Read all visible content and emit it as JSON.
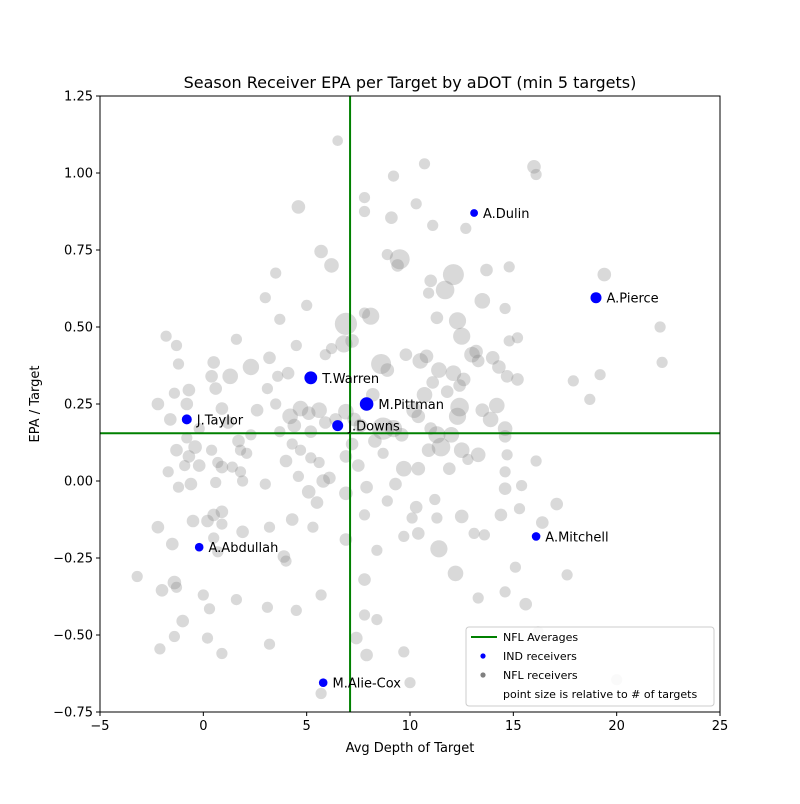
{
  "chart_data": {
    "type": "scatter",
    "title": "Season Receiver EPA per Target by aDOT (min 5 targets)",
    "xlabel": "Avg Depth of Target",
    "ylabel": "EPA / Target",
    "xlim": [
      -5,
      25
    ],
    "ylim": [
      -0.75,
      1.25
    ],
    "xticks": [
      -5,
      0,
      5,
      10,
      15,
      20,
      25
    ],
    "yticks": [
      -0.75,
      -0.5,
      -0.25,
      0.0,
      0.25,
      0.5,
      0.75,
      1.0,
      1.25
    ],
    "xtick_labels": [
      "−5",
      "0",
      "5",
      "10",
      "15",
      "20",
      "25"
    ],
    "ytick_labels": [
      "−0.75",
      "−0.50",
      "−0.25",
      "0.00",
      "0.25",
      "0.50",
      "0.75",
      "1.00",
      "1.25"
    ],
    "grid": false,
    "reference_lines": {
      "x": 7.1,
      "y": 0.155
    },
    "colors": {
      "averages": "#008000",
      "ind": "#0000ff",
      "nfl": "#808080"
    },
    "legend": {
      "position": "lower-right",
      "items": [
        {
          "label": "NFL Averages",
          "marker": "line"
        },
        {
          "label": "IND receivers",
          "marker": "blue-dot"
        },
        {
          "label": "NFL receivers",
          "marker": "gray-dot"
        },
        {
          "label": "point size is relative to # of targets",
          "marker": "none"
        }
      ]
    },
    "ind_receivers": [
      {
        "label": "A.Dulin",
        "x": 13.1,
        "y": 0.87,
        "targets": 8
      },
      {
        "label": "A.Pierce",
        "x": 19.0,
        "y": 0.595,
        "targets": 30
      },
      {
        "label": "T.Warren",
        "x": 5.2,
        "y": 0.335,
        "targets": 50
      },
      {
        "label": "M.Pittman",
        "x": 7.9,
        "y": 0.25,
        "targets": 60
      },
      {
        "label": "J.Taylor",
        "x": -0.8,
        "y": 0.2,
        "targets": 22
      },
      {
        "label": "J.Downs",
        "x": 6.5,
        "y": 0.18,
        "targets": 30
      },
      {
        "label": "A.Abdullah",
        "x": -0.2,
        "y": -0.215,
        "targets": 12
      },
      {
        "label": "A.Mitchell",
        "x": 16.1,
        "y": -0.18,
        "targets": 12
      },
      {
        "label": "M.Alie-Cox",
        "x": 5.8,
        "y": -0.655,
        "targets": 12
      }
    ],
    "nfl_receivers": [
      [
        6.5,
        1.105,
        8
      ],
      [
        9.2,
        0.99,
        10
      ],
      [
        10.7,
        1.03,
        10
      ],
      [
        16.0,
        1.02,
        20
      ],
      [
        16.1,
        0.995,
        10
      ],
      [
        7.8,
        0.92,
        10
      ],
      [
        7.8,
        0.875,
        10
      ],
      [
        9.1,
        0.855,
        15
      ],
      [
        10.3,
        0.9,
        10
      ],
      [
        12.7,
        0.82,
        10
      ],
      [
        11.1,
        0.83,
        10
      ],
      [
        4.6,
        0.89,
        20
      ],
      [
        9.5,
        0.72,
        60
      ],
      [
        12.1,
        0.67,
        70
      ],
      [
        11.7,
        0.62,
        50
      ],
      [
        5.7,
        0.745,
        20
      ],
      [
        6.2,
        0.7,
        25
      ],
      [
        8.9,
        0.735,
        10
      ],
      [
        9.4,
        0.7,
        15
      ],
      [
        13.7,
        0.685,
        15
      ],
      [
        14.8,
        0.695,
        10
      ],
      [
        3.5,
        0.675,
        10
      ],
      [
        19.4,
        0.67,
        20
      ],
      [
        11.0,
        0.65,
        15
      ],
      [
        10.9,
        0.61,
        10
      ],
      [
        13.5,
        0.585,
        30
      ],
      [
        3.0,
        0.595,
        10
      ],
      [
        5.0,
        0.57,
        10
      ],
      [
        7.8,
        0.545,
        10
      ],
      [
        6.9,
        0.51,
        80
      ],
      [
        8.1,
        0.535,
        40
      ],
      [
        11.3,
        0.53,
        15
      ],
      [
        12.3,
        0.52,
        40
      ],
      [
        14.6,
        0.56,
        10
      ],
      [
        22.1,
        0.5,
        10
      ],
      [
        15.2,
        0.465,
        10
      ],
      [
        14.8,
        0.455,
        10
      ],
      [
        3.7,
        0.525,
        10
      ],
      [
        1.6,
        0.46,
        10
      ],
      [
        -1.8,
        0.47,
        10
      ],
      [
        -1.3,
        0.44,
        10
      ],
      [
        7.2,
        0.455,
        20
      ],
      [
        6.8,
        0.445,
        40
      ],
      [
        5.9,
        0.41,
        10
      ],
      [
        4.5,
        0.44,
        10
      ],
      [
        6.2,
        0.43,
        10
      ],
      [
        9.8,
        0.41,
        15
      ],
      [
        10.8,
        0.405,
        20
      ],
      [
        12.5,
        0.47,
        40
      ],
      [
        13.2,
        0.42,
        20
      ],
      [
        13.0,
        0.41,
        30
      ],
      [
        14.0,
        0.4,
        20
      ],
      [
        8.6,
        0.38,
        60
      ],
      [
        8.9,
        0.36,
        20
      ],
      [
        10.5,
        0.39,
        30
      ],
      [
        11.4,
        0.36,
        30
      ],
      [
        12.1,
        0.35,
        30
      ],
      [
        13.3,
        0.39,
        15
      ],
      [
        12.6,
        0.33,
        20
      ],
      [
        10.7,
        0.28,
        30
      ],
      [
        11.1,
        0.32,
        15
      ],
      [
        11.8,
        0.29,
        15
      ],
      [
        12.4,
        0.31,
        15
      ],
      [
        14.3,
        0.37,
        20
      ],
      [
        14.7,
        0.34,
        15
      ],
      [
        15.2,
        0.33,
        15
      ],
      [
        17.9,
        0.325,
        10
      ],
      [
        19.2,
        0.345,
        10
      ],
      [
        22.2,
        0.385,
        10
      ],
      [
        18.7,
        0.265,
        10
      ],
      [
        2.3,
        0.37,
        35
      ],
      [
        1.3,
        0.34,
        30
      ],
      [
        0.5,
        0.385,
        15
      ],
      [
        0.4,
        0.34,
        15
      ],
      [
        -1.2,
        0.38,
        10
      ],
      [
        3.2,
        0.4,
        15
      ],
      [
        4.1,
        0.35,
        15
      ],
      [
        3.6,
        0.34,
        10
      ],
      [
        3.1,
        0.3,
        10
      ],
      [
        0.6,
        0.3,
        15
      ],
      [
        -0.7,
        0.295,
        15
      ],
      [
        -1.4,
        0.285,
        10
      ],
      [
        -0.8,
        0.25,
        15
      ],
      [
        -2.2,
        0.25,
        15
      ],
      [
        0.9,
        0.235,
        15
      ],
      [
        2.6,
        0.23,
        15
      ],
      [
        3.5,
        0.25,
        10
      ],
      [
        4.2,
        0.21,
        30
      ],
      [
        4.7,
        0.235,
        30
      ],
      [
        5.1,
        0.22,
        20
      ],
      [
        5.6,
        0.23,
        30
      ],
      [
        4.4,
        0.18,
        20
      ],
      [
        5.2,
        0.16,
        15
      ],
      [
        5.9,
        0.19,
        15
      ],
      [
        6.4,
        0.2,
        15
      ],
      [
        6.9,
        0.225,
        30
      ],
      [
        7.3,
        0.2,
        20
      ],
      [
        7.6,
        0.18,
        20
      ],
      [
        8.2,
        0.28,
        20
      ],
      [
        8.7,
        0.17,
        80
      ],
      [
        9.2,
        0.17,
        40
      ],
      [
        9.6,
        0.15,
        20
      ],
      [
        10.2,
        0.23,
        30
      ],
      [
        10.4,
        0.21,
        20
      ],
      [
        11.0,
        0.17,
        15
      ],
      [
        11.3,
        0.15,
        40
      ],
      [
        11.5,
        0.11,
        50
      ],
      [
        12.3,
        0.21,
        40
      ],
      [
        12.4,
        0.24,
        50
      ],
      [
        13.5,
        0.23,
        20
      ],
      [
        13.9,
        0.2,
        30
      ],
      [
        14.2,
        0.245,
        30
      ],
      [
        14.6,
        0.17,
        25
      ],
      [
        14.6,
        0.145,
        15
      ],
      [
        12.0,
        0.15,
        30
      ],
      [
        12.5,
        0.1,
        30
      ],
      [
        13.3,
        0.085,
        25
      ],
      [
        12.8,
        0.07,
        10
      ],
      [
        14.7,
        0.085,
        10
      ],
      [
        16.1,
        0.065,
        10
      ],
      [
        -1.6,
        0.2,
        15
      ],
      [
        -0.2,
        0.17,
        10
      ],
      [
        1.2,
        0.19,
        15
      ],
      [
        2.3,
        0.15,
        10
      ],
      [
        3.7,
        0.16,
        10
      ],
      [
        4.3,
        0.12,
        10
      ],
      [
        -1.3,
        0.1,
        15
      ],
      [
        -0.4,
        0.11,
        20
      ],
      [
        -0.8,
        0.14,
        10
      ],
      [
        0.4,
        0.1,
        10
      ],
      [
        1.7,
        0.13,
        15
      ],
      [
        1.8,
        0.1,
        10
      ],
      [
        2.1,
        0.09,
        10
      ],
      [
        0.7,
        0.06,
        10
      ],
      [
        0.9,
        0.045,
        15
      ],
      [
        1.4,
        0.045,
        10
      ],
      [
        -0.7,
        0.08,
        15
      ],
      [
        -0.9,
        0.05,
        10
      ],
      [
        -1.7,
        0.03,
        10
      ],
      [
        -1.2,
        -0.02,
        10
      ],
      [
        -0.6,
        -0.01,
        15
      ],
      [
        0.6,
        -0.005,
        10
      ],
      [
        -0.2,
        0.05,
        15
      ],
      [
        1.8,
        0.03,
        10
      ],
      [
        1.9,
        0.0,
        10
      ],
      [
        3.0,
        -0.01,
        10
      ],
      [
        4.0,
        0.065,
        15
      ],
      [
        4.7,
        0.1,
        10
      ],
      [
        5.2,
        0.075,
        10
      ],
      [
        5.6,
        0.06,
        10
      ],
      [
        5.8,
        0.0,
        20
      ],
      [
        6.1,
        0.01,
        15
      ],
      [
        6.9,
        0.08,
        15
      ],
      [
        7.5,
        0.05,
        15
      ],
      [
        7.2,
        0.12,
        15
      ],
      [
        8.3,
        0.13,
        20
      ],
      [
        8.7,
        0.09,
        10
      ],
      [
        9.7,
        0.04,
        30
      ],
      [
        10.4,
        0.04,
        20
      ],
      [
        10.9,
        0.1,
        20
      ],
      [
        11.9,
        0.04,
        15
      ],
      [
        11.2,
        -0.06,
        10
      ],
      [
        14.6,
        0.03,
        10
      ],
      [
        15.4,
        -0.015,
        10
      ],
      [
        14.6,
        -0.025,
        15
      ],
      [
        4.6,
        0.015,
        10
      ],
      [
        5.1,
        -0.035,
        20
      ],
      [
        5.5,
        -0.07,
        15
      ],
      [
        6.9,
        -0.04,
        20
      ],
      [
        7.9,
        -0.02,
        15
      ],
      [
        8.9,
        -0.065,
        10
      ],
      [
        9.3,
        -0.01,
        15
      ],
      [
        10.3,
        -0.085,
        15
      ],
      [
        10.1,
        -0.12,
        10
      ],
      [
        11.3,
        -0.12,
        10
      ],
      [
        12.5,
        -0.115,
        20
      ],
      [
        13.1,
        -0.17,
        10
      ],
      [
        13.6,
        -0.175,
        10
      ],
      [
        14.4,
        -0.11,
        15
      ],
      [
        17.1,
        -0.075,
        15
      ],
      [
        15.3,
        -0.09,
        10
      ],
      [
        16.4,
        -0.135,
        15
      ],
      [
        -2.2,
        -0.15,
        15
      ],
      [
        -1.5,
        -0.205,
        15
      ],
      [
        -0.5,
        -0.13,
        15
      ],
      [
        0.2,
        -0.13,
        15
      ],
      [
        0.5,
        -0.11,
        15
      ],
      [
        0.9,
        -0.1,
        15
      ],
      [
        0.9,
        -0.14,
        10
      ],
      [
        3.2,
        -0.15,
        10
      ],
      [
        4.3,
        -0.125,
        15
      ],
      [
        5.3,
        -0.15,
        10
      ],
      [
        6.9,
        -0.19,
        15
      ],
      [
        7.8,
        -0.11,
        10
      ],
      [
        9.7,
        -0.18,
        10
      ],
      [
        10.4,
        -0.17,
        15
      ],
      [
        11.4,
        -0.22,
        40
      ],
      [
        1.9,
        -0.165,
        15
      ],
      [
        0.5,
        -0.185,
        10
      ],
      [
        0.7,
        -0.23,
        10
      ],
      [
        3.9,
        -0.245,
        15
      ],
      [
        4.0,
        -0.26,
        10
      ],
      [
        8.4,
        -0.225,
        10
      ],
      [
        -1.4,
        -0.33,
        20
      ],
      [
        12.2,
        -0.3,
        30
      ],
      [
        15.1,
        -0.28,
        10
      ],
      [
        17.6,
        -0.305,
        10
      ],
      [
        -3.2,
        -0.31,
        10
      ],
      [
        -2.0,
        -0.355,
        15
      ],
      [
        -1.3,
        -0.345,
        10
      ],
      [
        0.0,
        -0.37,
        10
      ],
      [
        0.3,
        -0.415,
        10
      ],
      [
        1.6,
        -0.385,
        10
      ],
      [
        3.1,
        -0.41,
        10
      ],
      [
        4.5,
        -0.42,
        10
      ],
      [
        5.7,
        -0.37,
        10
      ],
      [
        7.8,
        -0.32,
        15
      ],
      [
        15.6,
        -0.4,
        15
      ],
      [
        14.6,
        -0.36,
        10
      ],
      [
        13.3,
        -0.38,
        10
      ],
      [
        -1.0,
        -0.455,
        15
      ],
      [
        7.8,
        -0.435,
        10
      ],
      [
        8.4,
        -0.45,
        10
      ],
      [
        16.2,
        -0.49,
        10
      ],
      [
        -1.4,
        -0.505,
        10
      ],
      [
        0.2,
        -0.51,
        10
      ],
      [
        3.2,
        -0.53,
        10
      ],
      [
        7.4,
        -0.51,
        15
      ],
      [
        9.7,
        -0.555,
        10
      ],
      [
        0.9,
        -0.56,
        10
      ],
      [
        -2.1,
        -0.545,
        10
      ],
      [
        7.9,
        -0.565,
        15
      ],
      [
        5.7,
        -0.69,
        10
      ],
      [
        10.0,
        -0.655,
        10
      ],
      [
        20.0,
        -0.645,
        10
      ]
    ]
  }
}
